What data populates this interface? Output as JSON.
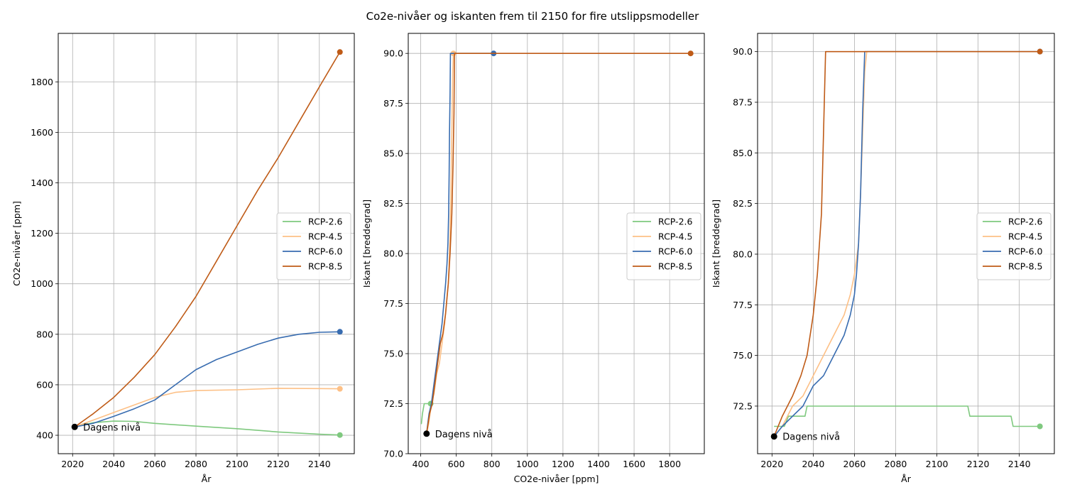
{
  "figure": {
    "title": "Co2e-nivåer og iskanten frem til 2150 for fire utslippsmodeller"
  },
  "colors": {
    "RCP-2.6": "#7fc97f",
    "RCP-4.5": "#fdc086",
    "RCP-6.0": "#386cb0",
    "RCP-8.5": "#bf5b17",
    "today": "#000000",
    "grid": "#b0b0b0"
  },
  "chart_data": [
    {
      "type": "line",
      "xlabel": "År",
      "ylabel": "CO2e-nivåer [ppm]",
      "xlim": [
        2013,
        2157
      ],
      "ylim": [
        327,
        1992
      ],
      "xticks": [
        2020,
        2040,
        2060,
        2080,
        2100,
        2120,
        2140
      ],
      "yticks": [
        400,
        600,
        800,
        1000,
        1200,
        1400,
        1600,
        1800
      ],
      "grid": true,
      "legend_placement": "center-right",
      "annotation": {
        "text": "Dagens nivå",
        "x": 2021,
        "y": 433
      },
      "series": [
        {
          "name": "RCP-2.6",
          "x": [
            2021,
            2030,
            2040,
            2050,
            2060,
            2080,
            2100,
            2120,
            2140,
            2150
          ],
          "y": [
            433,
            450,
            456,
            455,
            447,
            436,
            426,
            413,
            404,
            401
          ]
        },
        {
          "name": "RCP-4.5",
          "x": [
            2021,
            2030,
            2040,
            2050,
            2060,
            2070,
            2080,
            2100,
            2120,
            2140,
            2150
          ],
          "y": [
            433,
            460,
            490,
            520,
            550,
            570,
            577,
            580,
            586,
            585,
            584
          ]
        },
        {
          "name": "RCP-6.0",
          "x": [
            2021,
            2030,
            2040,
            2050,
            2060,
            2070,
            2080,
            2090,
            2100,
            2110,
            2120,
            2130,
            2140,
            2150
          ],
          "y": [
            433,
            447,
            475,
            505,
            540,
            600,
            660,
            700,
            730,
            760,
            785,
            800,
            808,
            810
          ]
        },
        {
          "name": "RCP-8.5",
          "x": [
            2021,
            2030,
            2040,
            2050,
            2060,
            2070,
            2080,
            2090,
            2100,
            2110,
            2120,
            2130,
            2140,
            2150
          ],
          "y": [
            433,
            485,
            550,
            630,
            720,
            830,
            950,
            1090,
            1230,
            1370,
            1500,
            1640,
            1780,
            1918
          ]
        }
      ]
    },
    {
      "type": "line",
      "xlabel": "CO2e-nivåer [ppm]",
      "ylabel": "Iskant [breddegrad]",
      "xlim": [
        330,
        1995
      ],
      "ylim": [
        70.0,
        91.0
      ],
      "xticks": [
        400,
        600,
        800,
        1000,
        1200,
        1400,
        1600,
        1800
      ],
      "yticks": [
        70.0,
        72.5,
        75.0,
        77.5,
        80.0,
        82.5,
        85.0,
        87.5,
        90.0
      ],
      "tick_format": "fixed1",
      "grid": true,
      "legend_placement": "center-right",
      "annotation": {
        "text": "Dagens nivå",
        "x": 433,
        "y": 71.0
      },
      "series": [
        {
          "name": "RCP-2.6",
          "x": [
            401,
            404,
            410,
            420,
            433,
            445,
            450,
            456
          ],
          "y": [
            71.5,
            71.5,
            72.0,
            72.5,
            72.5,
            72.5,
            72.5,
            72.5
          ]
        },
        {
          "name": "RCP-4.5",
          "x": [
            433,
            445,
            460,
            475,
            490,
            505,
            520,
            535,
            545,
            555,
            560,
            565,
            570,
            575,
            580,
            584
          ],
          "y": [
            71.0,
            71.5,
            72.5,
            73.0,
            74.0,
            74.5,
            75.5,
            76.5,
            77.5,
            78.5,
            79.5,
            81.0,
            83.0,
            86.0,
            89.0,
            90.0
          ]
        },
        {
          "name": "RCP-6.0",
          "x": [
            433,
            440,
            447,
            460,
            475,
            490,
            505,
            520,
            530,
            540,
            548,
            553,
            557,
            560,
            562,
            565,
            567,
            570,
            580,
            600,
            650,
            700,
            750,
            800,
            810
          ],
          "y": [
            71.0,
            71.5,
            72.0,
            72.5,
            73.5,
            74.5,
            75.5,
            76.5,
            77.5,
            78.5,
            79.5,
            80.5,
            82.0,
            84.0,
            86.0,
            88.0,
            90.0,
            90.0,
            90.0,
            90.0,
            90.0,
            90.0,
            90.0,
            90.0,
            90.0
          ]
        },
        {
          "name": "RCP-8.5",
          "x": [
            433,
            450,
            465,
            480,
            495,
            510,
            525,
            540,
            555,
            565,
            575,
            582,
            587,
            590,
            595,
            600,
            700,
            900,
            1100,
            1300,
            1500,
            1700,
            1918
          ],
          "y": [
            71.0,
            72.0,
            72.5,
            73.5,
            74.5,
            75.5,
            76.0,
            77.0,
            78.5,
            80.0,
            82.0,
            84.5,
            87.0,
            90.0,
            90.0,
            90.0,
            90.0,
            90.0,
            90.0,
            90.0,
            90.0,
            90.0,
            90.0
          ]
        }
      ]
    },
    {
      "type": "line",
      "xlabel": "År",
      "ylabel": "Iskant [breddegrad]",
      "xlim": [
        2013,
        2157
      ],
      "ylim": [
        70.15,
        90.9
      ],
      "xticks": [
        2020,
        2040,
        2060,
        2080,
        2100,
        2120,
        2140
      ],
      "yticks": [
        72.5,
        75.0,
        77.5,
        80.0,
        82.5,
        85.0,
        87.5,
        90.0
      ],
      "tick_format": "fixed1",
      "grid": true,
      "legend_placement": "center-right",
      "annotation": {
        "text": "Dagens nivå",
        "x": 2021,
        "y": 71.0
      },
      "series": [
        {
          "name": "RCP-2.6",
          "x": [
            2021,
            2026,
            2028,
            2036,
            2037,
            2100,
            2115,
            2116,
            2136,
            2137,
            2150
          ],
          "y": [
            71.5,
            71.5,
            72.0,
            72.0,
            72.5,
            72.5,
            72.5,
            72.0,
            72.0,
            71.5,
            71.5
          ]
        },
        {
          "name": "RCP-4.5",
          "x": [
            2021,
            2025,
            2030,
            2035,
            2040,
            2045,
            2050,
            2055,
            2058,
            2060,
            2062,
            2063,
            2064,
            2065,
            2066,
            2100,
            2150
          ],
          "y": [
            71.0,
            71.5,
            72.5,
            73.0,
            74.0,
            75.0,
            76.0,
            77.0,
            78.0,
            79.0,
            80.5,
            83.0,
            86.0,
            89.0,
            90.0,
            90.0,
            90.0
          ]
        },
        {
          "name": "RCP-6.0",
          "x": [
            2021,
            2025,
            2030,
            2035,
            2040,
            2045,
            2050,
            2055,
            2058,
            2060,
            2061,
            2062,
            2063,
            2064,
            2065,
            2100,
            2150
          ],
          "y": [
            71.0,
            71.5,
            72.0,
            72.5,
            73.5,
            74.0,
            75.0,
            76.0,
            77.0,
            78.0,
            79.0,
            80.5,
            83.0,
            87.0,
            90.0,
            90.0,
            90.0
          ]
        },
        {
          "name": "RCP-8.5",
          "x": [
            2021,
            2025,
            2030,
            2034,
            2037,
            2040,
            2042,
            2044,
            2045,
            2046,
            2047,
            2100,
            2150
          ],
          "y": [
            71.0,
            72.0,
            73.0,
            74.0,
            75.0,
            77.0,
            79.0,
            82.0,
            86.0,
            90.0,
            90.0,
            90.0,
            90.0
          ]
        }
      ]
    }
  ]
}
